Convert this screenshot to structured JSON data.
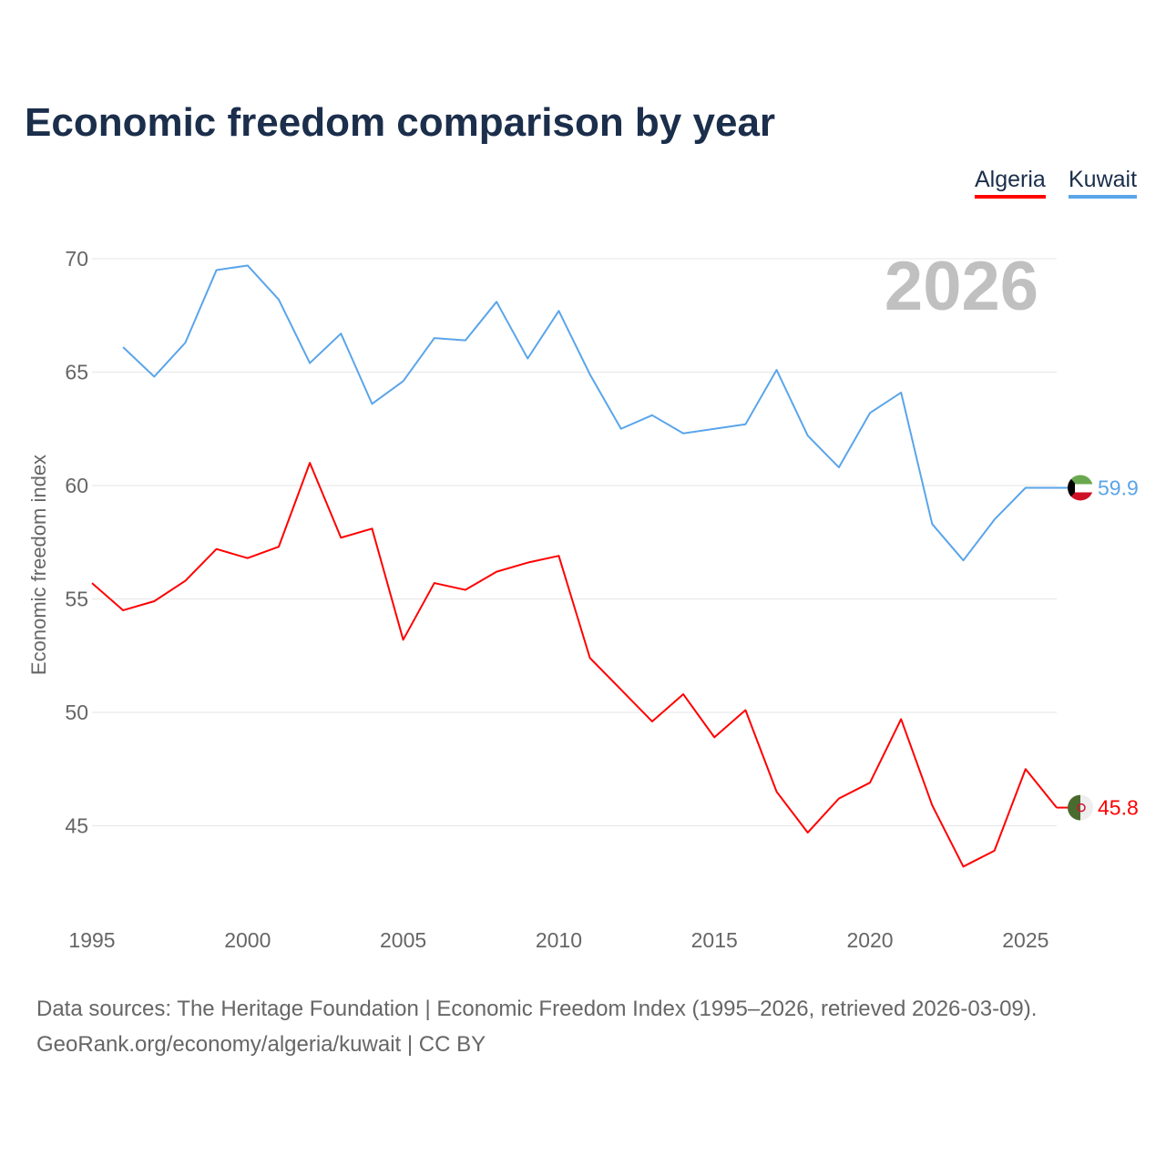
{
  "title": "Economic freedom comparison by year",
  "legend": [
    {
      "label": "Algeria",
      "color": "#ff0000"
    },
    {
      "label": "Kuwait",
      "color": "#5aa5ea"
    }
  ],
  "source_line1": "Data sources: The Heritage Foundation | Economic Freedom Index (1995–2026, retrieved 2026-03-09).",
  "source_line2": "GeoRank.org/economy/algeria/kuwait | CC BY",
  "chart_data": {
    "type": "line",
    "title": "Economic freedom comparison by year",
    "ylabel": "Economic freedom index",
    "xlabel": "",
    "year_label": "2026",
    "xlim": [
      1995,
      2026
    ],
    "ylim": [
      42,
      71
    ],
    "xticks": [
      1995,
      2000,
      2005,
      2010,
      2015,
      2020,
      2025
    ],
    "yticks": [
      45,
      50,
      55,
      60,
      65,
      70
    ],
    "grid": true,
    "legend_position": "top-right",
    "series": [
      {
        "name": "Algeria",
        "color": "#ff0000",
        "end_label": "45.8",
        "flag": "algeria-flag",
        "x": [
          1995,
          1996,
          1997,
          1998,
          1999,
          2000,
          2001,
          2002,
          2003,
          2004,
          2005,
          2006,
          2007,
          2008,
          2009,
          2010,
          2011,
          2012,
          2013,
          2014,
          2015,
          2016,
          2017,
          2018,
          2019,
          2020,
          2021,
          2022,
          2023,
          2024,
          2025,
          2026
        ],
        "values": [
          55.7,
          54.5,
          54.9,
          55.8,
          57.2,
          56.8,
          57.3,
          61.0,
          57.7,
          58.1,
          53.2,
          55.7,
          55.4,
          56.2,
          56.6,
          56.9,
          52.4,
          51.0,
          49.6,
          50.8,
          48.9,
          50.1,
          46.5,
          44.7,
          46.2,
          46.9,
          49.7,
          45.9,
          43.2,
          43.9,
          47.5,
          45.8
        ]
      },
      {
        "name": "Kuwait",
        "color": "#5aa5ea",
        "end_label": "59.9",
        "flag": "kuwait-flag",
        "x": [
          1996,
          1997,
          1998,
          1999,
          2000,
          2001,
          2002,
          2003,
          2004,
          2005,
          2006,
          2007,
          2008,
          2009,
          2010,
          2011,
          2012,
          2013,
          2014,
          2015,
          2016,
          2017,
          2018,
          2019,
          2020,
          2021,
          2022,
          2023,
          2024,
          2025,
          2026
        ],
        "values": [
          66.1,
          64.8,
          66.3,
          69.5,
          69.7,
          68.2,
          65.4,
          66.7,
          63.6,
          64.6,
          66.5,
          66.4,
          68.1,
          65.6,
          67.7,
          64.9,
          62.5,
          63.1,
          62.3,
          62.5,
          62.7,
          65.1,
          62.2,
          60.8,
          63.2,
          64.1,
          58.3,
          56.7,
          58.5,
          59.9,
          59.9
        ]
      }
    ]
  }
}
